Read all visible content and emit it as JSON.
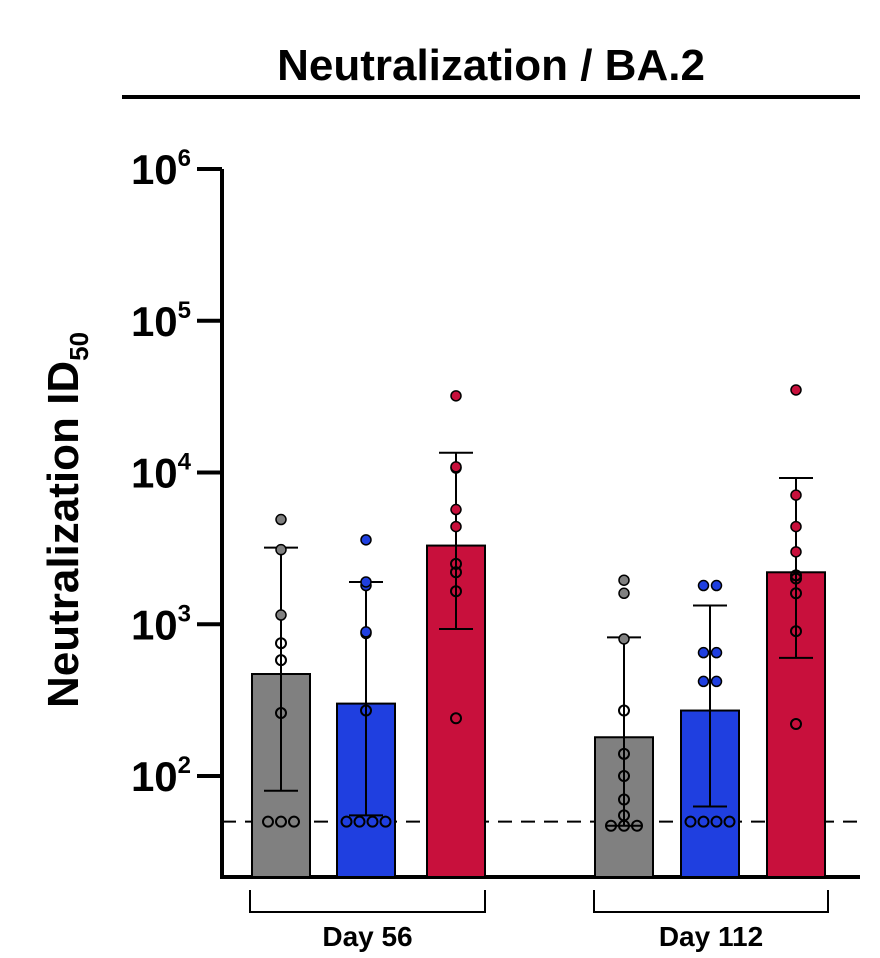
{
  "chart_data": {
    "type": "bar",
    "title": "Neutralization / BA.2",
    "ylabel": "Neutralization ID",
    "ylabel_subscript": "50",
    "yscale": "log",
    "ylim": [
      30,
      1000000
    ],
    "yticks": [
      {
        "base": "10",
        "exp": "2",
        "value": 100
      },
      {
        "base": "10",
        "exp": "3",
        "value": 1000
      },
      {
        "base": "10",
        "exp": "4",
        "value": 10000
      },
      {
        "base": "10",
        "exp": "5",
        "value": 100000
      },
      {
        "base": "10",
        "exp": "6",
        "value": 1000000
      }
    ],
    "limit_of_detection": 50,
    "groups": [
      {
        "label": "Day 56",
        "bars": [
          {
            "color": "#808080",
            "value": 470,
            "err_low": 80,
            "err_high": 3200,
            "points": [
              50,
              50,
              50,
              260,
              580,
              750,
              1150,
              3100,
              4900
            ],
            "hollow_points": [
              50,
              50,
              50,
              260,
              580,
              750
            ]
          },
          {
            "color": "#1f3fe0",
            "value": 300,
            "err_low": 55,
            "err_high": 1900,
            "points": [
              50,
              50,
              50,
              50,
              270,
              870,
              890,
              1800,
              1900,
              3600
            ],
            "hollow_points": [
              50,
              50,
              50,
              50,
              270
            ]
          },
          {
            "color": "#c8103c",
            "value": 3300,
            "err_low": 930,
            "err_high": 13500,
            "points": [
              240,
              1650,
              2200,
              2500,
              4400,
              5700,
              10700,
              10900,
              32000
            ],
            "hollow_points": [
              240,
              1650,
              2200,
              2500
            ]
          }
        ]
      },
      {
        "label": "Day 112",
        "bars": [
          {
            "color": "#808080",
            "value": 180,
            "err_low": 47,
            "err_high": 820,
            "points": [
              47,
              47,
              47,
              55,
              70,
              100,
              140,
              270,
              800,
              1600,
              1950
            ],
            "hollow_points": [
              47,
              47,
              47,
              55,
              70,
              100,
              140,
              270
            ]
          },
          {
            "color": "#1f3fe0",
            "value": 270,
            "err_low": 63,
            "err_high": 1330,
            "points": [
              50,
              50,
              50,
              50,
              420,
              420,
              650,
              650,
              1800,
              1800
            ],
            "hollow_points": [
              50,
              50,
              50,
              50
            ]
          },
          {
            "color": "#c8103c",
            "value": 2200,
            "err_low": 600,
            "err_high": 9200,
            "points": [
              220,
              900,
              1600,
              2000,
              2100,
              3000,
              4400,
              7100,
              35000
            ],
            "hollow_points": [
              220,
              900,
              1600,
              2000,
              2100
            ]
          }
        ]
      }
    ]
  }
}
